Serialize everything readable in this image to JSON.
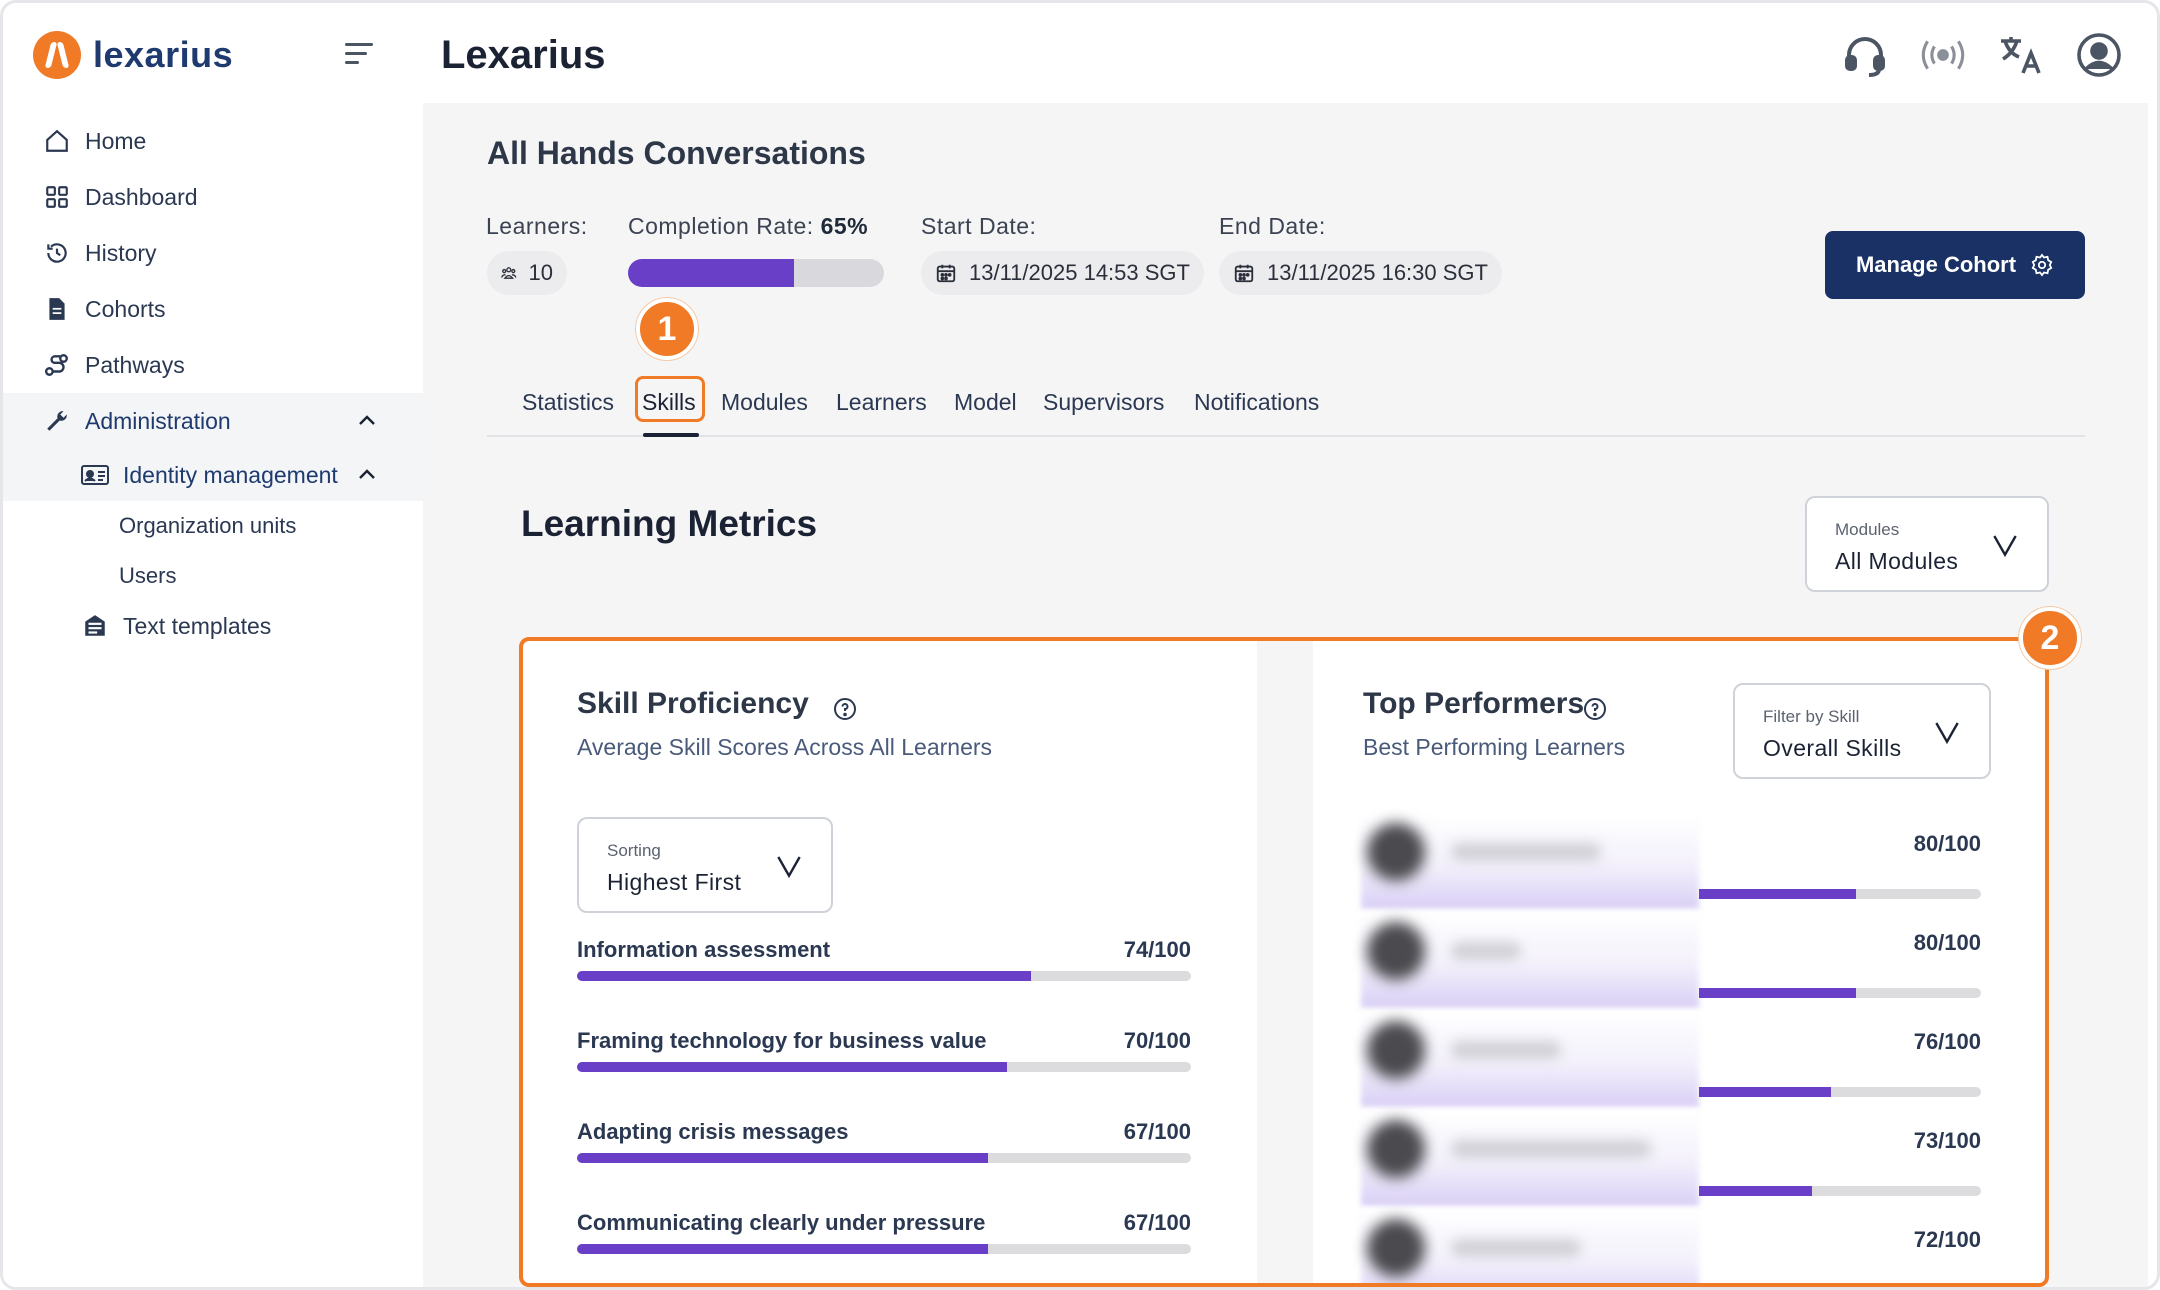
{
  "brand": {
    "name": "lexarius"
  },
  "sidebar": {
    "items": [
      {
        "label": "Home",
        "icon": "home-icon"
      },
      {
        "label": "Dashboard",
        "icon": "grid-icon"
      },
      {
        "label": "History",
        "icon": "history-icon"
      },
      {
        "label": "Cohorts",
        "icon": "document-icon"
      },
      {
        "label": "Pathways",
        "icon": "pathway-icon"
      },
      {
        "label": "Administration",
        "icon": "wrench-icon"
      },
      {
        "label": "Identity management",
        "icon": "id-card-icon"
      },
      {
        "label": "Organization units"
      },
      {
        "label": "Users"
      },
      {
        "label": "Text templates",
        "icon": "template-icon"
      }
    ]
  },
  "header": {
    "title": "Lexarius"
  },
  "page": {
    "title": "All Hands Conversations",
    "learners_label": "Learners:",
    "learners_count": "10",
    "completion_label": "Completion Rate:",
    "completion_value": "65%",
    "completion_fraction": 0.65,
    "start_label": "Start Date:",
    "start_value": "13/11/2025 14:53 SGT",
    "end_label": "End Date:",
    "end_value": "13/11/2025 16:30 SGT",
    "manage_button": "Manage Cohort"
  },
  "annotations": {
    "step1": "1",
    "step2": "2"
  },
  "tabs": [
    "Statistics",
    "Skills",
    "Modules",
    "Learners",
    "Model",
    "Supervisors",
    "Notifications"
  ],
  "metrics": {
    "title": "Learning Metrics",
    "modules_select": {
      "label": "Modules",
      "value": "All Modules"
    }
  },
  "skill_card": {
    "title": "Skill Proficiency",
    "subtitle": "Average Skill Scores Across All Learners",
    "sorting": {
      "label": "Sorting",
      "value": "Highest First"
    },
    "skills": [
      {
        "name": "Information assessment",
        "score": "74/100",
        "value": 74
      },
      {
        "name": "Framing technology for business value",
        "score": "70/100",
        "value": 70
      },
      {
        "name": "Adapting crisis messages",
        "score": "67/100",
        "value": 67
      },
      {
        "name": "Communicating clearly under pressure",
        "score": "67/100",
        "value": 67
      }
    ]
  },
  "performers_card": {
    "title": "Top Performers",
    "subtitle": "Best Performing Learners",
    "filter": {
      "label": "Filter by Skill",
      "value": "Overall Skills"
    },
    "performers": [
      {
        "score": "80/100",
        "value": 80
      },
      {
        "score": "80/100",
        "value": 80
      },
      {
        "score": "76/100",
        "value": 76
      },
      {
        "score": "73/100",
        "value": 73
      },
      {
        "score": "72/100",
        "value": 72
      }
    ]
  },
  "colors": {
    "accent": "#6a3fc7",
    "brand": "#f07a26",
    "primary_button": "#1a3166"
  }
}
